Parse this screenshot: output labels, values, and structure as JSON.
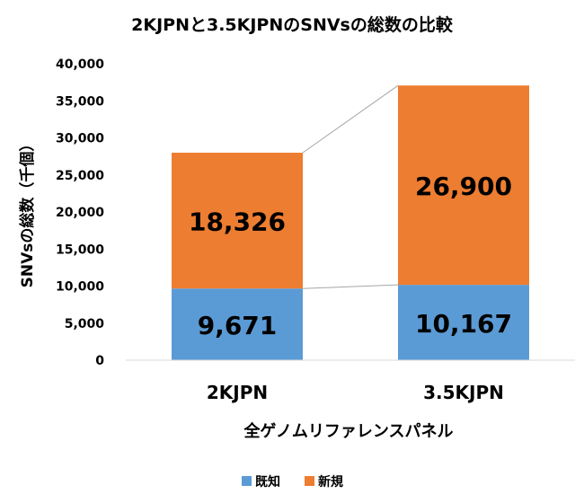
{
  "chart_data": {
    "type": "bar",
    "stacked": true,
    "title": "2KJPNと3.5KJPNのSNVsの総数の比較",
    "xlabel": "全ゲノムリファレンスパネル",
    "ylabel": "SNVsの総数（千個）",
    "categories": [
      "2KJPN",
      "3.5KJPN"
    ],
    "series": [
      {
        "name": "既知",
        "values": [
          9671,
          10167
        ],
        "labels": [
          "9,671",
          "10,167"
        ],
        "color": "#5b9bd5"
      },
      {
        "name": "新規",
        "values": [
          18326,
          26900
        ],
        "labels": [
          "18,326",
          "26,900"
        ],
        "color": "#ed7d31"
      }
    ],
    "ylim": [
      0,
      40000
    ],
    "yticks": [
      0,
      5000,
      10000,
      15000,
      20000,
      25000,
      30000,
      35000,
      40000
    ],
    "ytick_labels": [
      "0",
      "5,000",
      "10,000",
      "15,000",
      "20,000",
      "25,000",
      "30,000",
      "35,000",
      "40,000"
    ],
    "grid": false,
    "legend": "bottom",
    "connector_color": "#a6a6a6"
  }
}
